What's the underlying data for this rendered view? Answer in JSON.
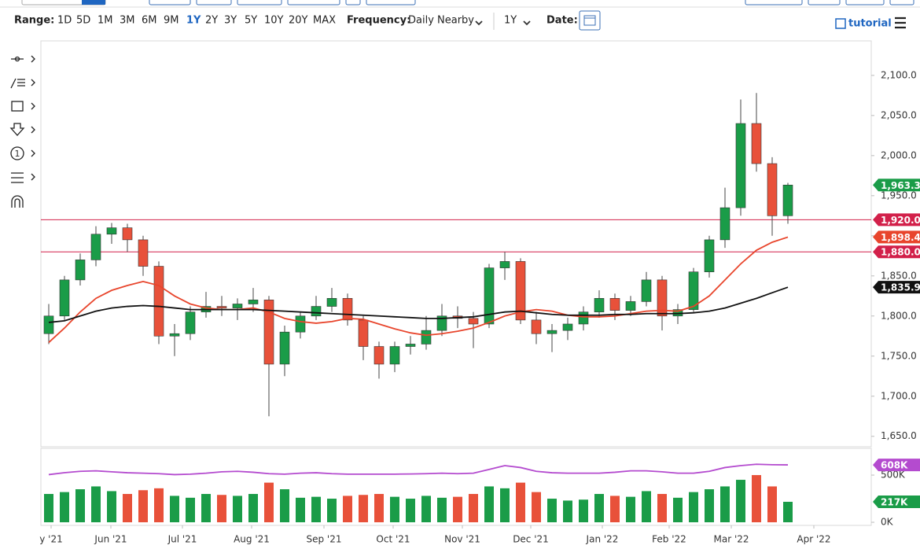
{
  "toolbar": {
    "range_label": "Range:",
    "ranges": [
      "1D",
      "5D",
      "1M",
      "3M",
      "6M",
      "9M",
      "1Y",
      "2Y",
      "3Y",
      "5Y",
      "10Y",
      "20Y",
      "MAX"
    ],
    "active_range_index": 6,
    "frequency_label": "Frequency:",
    "frequency": "Daily Nearby",
    "period": "1Y",
    "date_label": "Date:",
    "tutorial": "tutorial",
    "tool_badge": "1"
  },
  "chart_data": [
    {
      "type": "candlestick",
      "categories": [
        null,
        null,
        null,
        null,
        null,
        null,
        null,
        null,
        null,
        null,
        null,
        null,
        null,
        null,
        null,
        null,
        null,
        null,
        null,
        null,
        null,
        null,
        null,
        null,
        null,
        null,
        null,
        null,
        null,
        null,
        null,
        null,
        null,
        null,
        null,
        null,
        null,
        null,
        null,
        null,
        null,
        null,
        null,
        null,
        null,
        null,
        null,
        null
      ],
      "open": [
        1778,
        1800,
        1845,
        1870,
        1902,
        1910,
        1895,
        1862,
        1775,
        1778,
        1805,
        1812,
        1810,
        1815,
        1820,
        1740,
        1780,
        1800,
        1812,
        1822,
        1795,
        1762,
        1740,
        1762,
        1765,
        1782,
        1800,
        1797,
        1790,
        1860,
        1868,
        1795,
        1778,
        1782,
        1790,
        1805,
        1822,
        1807,
        1818,
        1845,
        1800,
        1808,
        1855,
        1895,
        1935,
        2040,
        1990,
        1925
      ],
      "high": [
        1815,
        1850,
        1878,
        1912,
        1916,
        1915,
        1900,
        1868,
        1790,
        1812,
        1830,
        1825,
        1822,
        1835,
        1825,
        1788,
        1805,
        1825,
        1835,
        1828,
        1800,
        1768,
        1768,
        1775,
        1800,
        1815,
        1812,
        1805,
        1865,
        1880,
        1872,
        1805,
        1790,
        1798,
        1812,
        1832,
        1828,
        1825,
        1855,
        1850,
        1815,
        1860,
        1900,
        1960,
        2070,
        2078,
        1998,
        1966
      ],
      "low": [
        1765,
        1795,
        1838,
        1862,
        1890,
        1880,
        1850,
        1765,
        1750,
        1770,
        1798,
        1800,
        1795,
        1805,
        1675,
        1725,
        1772,
        1795,
        1805,
        1788,
        1745,
        1722,
        1730,
        1752,
        1758,
        1775,
        1785,
        1760,
        1785,
        1845,
        1790,
        1765,
        1755,
        1770,
        1782,
        1798,
        1795,
        1800,
        1812,
        1782,
        1790,
        1805,
        1848,
        1885,
        1925,
        1980,
        1900,
        1915
      ],
      "close": [
        1800,
        1845,
        1870,
        1902,
        1910,
        1895,
        1862,
        1775,
        1778,
        1805,
        1812,
        1810,
        1815,
        1820,
        1740,
        1780,
        1800,
        1812,
        1822,
        1795,
        1762,
        1740,
        1762,
        1765,
        1782,
        1800,
        1797,
        1790,
        1860,
        1868,
        1795,
        1778,
        1782,
        1790,
        1805,
        1822,
        1807,
        1818,
        1845,
        1800,
        1808,
        1855,
        1895,
        1935,
        2040,
        1990,
        1925,
        1963.3
      ],
      "last_label": "1,963.3",
      "up_color": "#1a9c48",
      "down_color": "#e8513a",
      "overlays": [
        {
          "color": "#e8452c",
          "values": [
            1767,
            1785,
            1805,
            1822,
            1832,
            1838,
            1843,
            1838,
            1825,
            1815,
            1810,
            1808,
            1808,
            1810,
            1805,
            1797,
            1793,
            1791,
            1793,
            1797,
            1796,
            1790,
            1784,
            1779,
            1776,
            1778,
            1781,
            1785,
            1792,
            1800,
            1805,
            1808,
            1806,
            1801,
            1799,
            1799,
            1800,
            1803,
            1806,
            1807,
            1806,
            1812,
            1825,
            1845,
            1865,
            1882,
            1892,
            1898.4
          ],
          "end_label": "1,898.4"
        },
        {
          "color": "#111111",
          "values": [
            1792,
            1794,
            1800,
            1806,
            1810,
            1812,
            1813,
            1812,
            1810,
            1808,
            1808,
            1808,
            1808,
            1808,
            1807,
            1806,
            1805,
            1804,
            1803,
            1802,
            1801,
            1800,
            1799,
            1798,
            1797,
            1797,
            1798,
            1799,
            1802,
            1805,
            1806,
            1804,
            1802,
            1801,
            1801,
            1801,
            1802,
            1802,
            1803,
            1803,
            1803,
            1804,
            1806,
            1810,
            1816,
            1822,
            1829,
            1835.9
          ],
          "end_label": "1,835.9"
        }
      ],
      "levels": [
        {
          "value": 1920,
          "label": "1,920.0"
        },
        {
          "value": 1880,
          "label": "1,880.0"
        }
      ],
      "level_color": "#d2204a",
      "ylim": [
        1637,
        2143
      ],
      "yticks": [
        {
          "value": 1650,
          "label": "1,650.0"
        },
        {
          "value": 1700,
          "label": "1,700.0"
        },
        {
          "value": 1750,
          "label": "1,750.0"
        },
        {
          "value": 1800,
          "label": "1,800.0"
        },
        {
          "value": 1850,
          "label": "1,850.0"
        },
        {
          "value": 1900,
          "label": "1,900.0"
        },
        {
          "value": 1950,
          "label": "1,950.0"
        },
        {
          "value": 2000,
          "label": "2,000.0"
        },
        {
          "value": 2050,
          "label": "2,050.0"
        },
        {
          "value": 2100,
          "label": "2,100.0"
        }
      ],
      "xlim": [
        -0.5,
        52.3
      ],
      "xticks": [
        {
          "value": 0.15,
          "label": "y '21"
        },
        {
          "value": 3.95,
          "label": "Jun '21"
        },
        {
          "value": 8.5,
          "label": "Jul '21"
        },
        {
          "value": 12.9,
          "label": "Aug '21"
        },
        {
          "value": 17.5,
          "label": "Sep '21"
        },
        {
          "value": 21.9,
          "label": "Oct '21"
        },
        {
          "value": 26.3,
          "label": "Nov '21"
        },
        {
          "value": 30.65,
          "label": "Dec '21"
        },
        {
          "value": 35.2,
          "label": "Jan '22"
        },
        {
          "value": 39.45,
          "label": "Feb '22"
        },
        {
          "value": 43.4,
          "label": "Mar '22"
        },
        {
          "value": 48.65,
          "label": "Apr '22"
        }
      ]
    },
    {
      "type": "bar",
      "values": [
        300,
        320,
        350,
        380,
        330,
        300,
        340,
        360,
        280,
        260,
        300,
        290,
        280,
        300,
        420,
        350,
        260,
        270,
        250,
        280,
        290,
        300,
        270,
        250,
        280,
        260,
        270,
        300,
        380,
        360,
        420,
        320,
        250,
        230,
        240,
        300,
        280,
        270,
        330,
        300,
        260,
        320,
        350,
        380,
        450,
        500,
        380,
        217
      ],
      "end_label": "217K",
      "end_color": "#1a9c48",
      "overlay": {
        "color": "#b44bcf",
        "values": [
          505,
          525,
          540,
          545,
          535,
          525,
          520,
          515,
          505,
          510,
          520,
          535,
          540,
          530,
          515,
          510,
          520,
          525,
          515,
          510,
          510,
          510,
          510,
          512,
          515,
          520,
          515,
          520,
          560,
          600,
          580,
          540,
          525,
          520,
          520,
          520,
          530,
          545,
          545,
          535,
          520,
          520,
          540,
          580,
          600,
          615,
          610,
          608
        ],
        "end_label": "608K"
      },
      "ylim": [
        -33,
        767
      ],
      "yticks": [
        {
          "value": 0,
          "label": "0K"
        },
        {
          "value": 500,
          "label": "500K"
        }
      ]
    }
  ]
}
